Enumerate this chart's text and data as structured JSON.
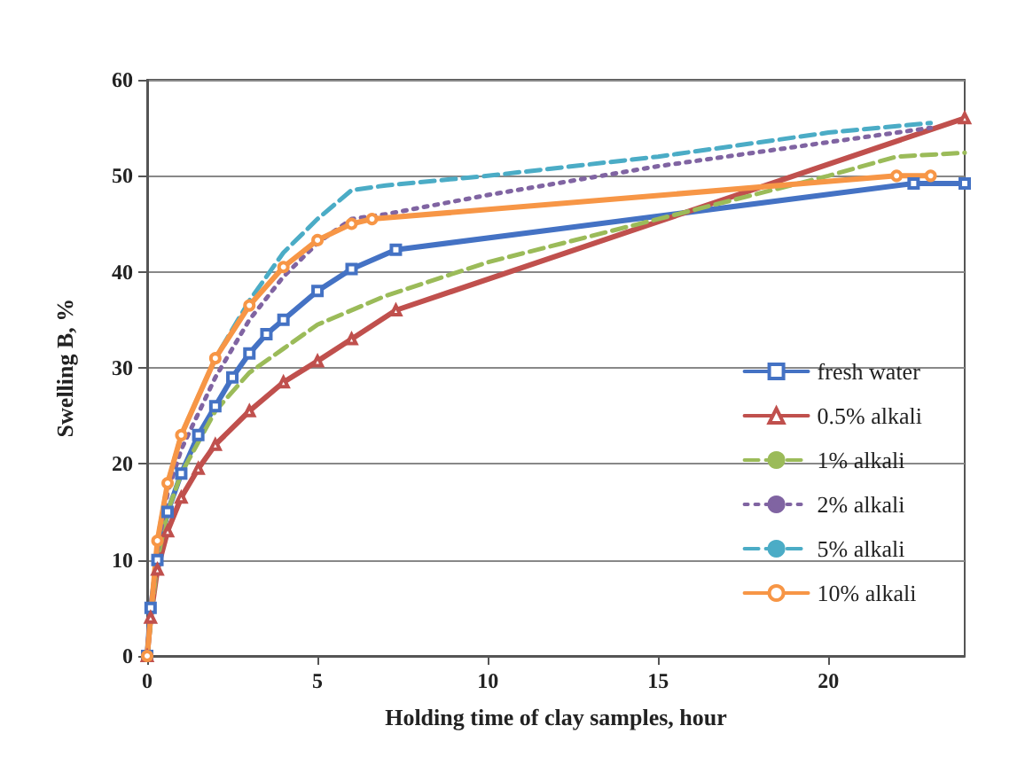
{
  "chart_data": {
    "type": "line",
    "xlabel": "Holding time of clay samples, hour",
    "ylabel": "Swelling B, %",
    "xlim": [
      0,
      24
    ],
    "xticks": [
      0,
      5,
      10,
      15,
      20
    ],
    "ylim": [
      0,
      60
    ],
    "yticks": [
      0,
      10,
      20,
      30,
      40,
      50,
      60
    ],
    "grid": "y",
    "legend": "right",
    "series": [
      {
        "name": "fresh water",
        "color": "#4472c4",
        "marker": "square",
        "line_style": "solid",
        "x": [
          0,
          0.1,
          0.3,
          0.6,
          1,
          1.5,
          2,
          2.5,
          3,
          3.5,
          4,
          5,
          6,
          7.3,
          22.5,
          24
        ],
        "values": [
          0,
          5,
          10,
          15,
          19,
          23,
          26,
          29,
          31.5,
          33.5,
          35,
          38,
          40.3,
          42.3,
          49.2,
          49.2
        ]
      },
      {
        "name": "0.5% alkali",
        "color": "#c0504d",
        "marker": "triangle",
        "line_style": "solid",
        "x": [
          0,
          0.1,
          0.3,
          0.6,
          1,
          1.5,
          2,
          3,
          4,
          5,
          6,
          7.3,
          24
        ],
        "values": [
          0,
          4,
          9,
          13,
          16.5,
          19.5,
          22,
          25.5,
          28.5,
          30.7,
          33,
          36,
          56
        ]
      },
      {
        "name": "1% alkali",
        "color": "#9bbb59",
        "marker": "none",
        "line_style": "dashed",
        "x": [
          0,
          0.3,
          0.6,
          1,
          2,
          3,
          4,
          5,
          7,
          10,
          15,
          20,
          22,
          24
        ],
        "values": [
          0,
          10,
          15,
          19,
          25.5,
          29.5,
          32,
          34.5,
          37.5,
          41,
          45.5,
          50,
          52,
          52.4
        ]
      },
      {
        "name": "2% alkali",
        "color": "#8064a2",
        "marker": "none",
        "line_style": "dotted",
        "x": [
          0,
          0.3,
          0.6,
          1,
          2,
          3,
          4,
          5,
          6,
          7,
          10,
          15,
          20,
          23
        ],
        "values": [
          0,
          11,
          17,
          21.5,
          29,
          35,
          39.5,
          43,
          45.5,
          46,
          48,
          51,
          53.5,
          55
        ]
      },
      {
        "name": "5% alkali",
        "color": "#4bacc6",
        "marker": "none",
        "line_style": "dashed",
        "x": [
          0,
          0.3,
          0.6,
          1,
          2,
          3,
          4,
          5,
          6,
          7,
          10,
          15,
          20,
          23
        ],
        "values": [
          0,
          12,
          18,
          23,
          31,
          37,
          42,
          45.5,
          48.5,
          49,
          50,
          52,
          54.5,
          55.5
        ]
      },
      {
        "name": "10% alkali",
        "color": "#f79646",
        "marker": "circle",
        "line_style": "solid",
        "x": [
          0,
          0.3,
          0.6,
          1,
          2,
          3,
          4,
          5,
          6,
          6.6,
          22,
          23
        ],
        "values": [
          0,
          12,
          18,
          23,
          31,
          36.5,
          40.5,
          43.3,
          45,
          45.5,
          50,
          50
        ]
      }
    ]
  }
}
